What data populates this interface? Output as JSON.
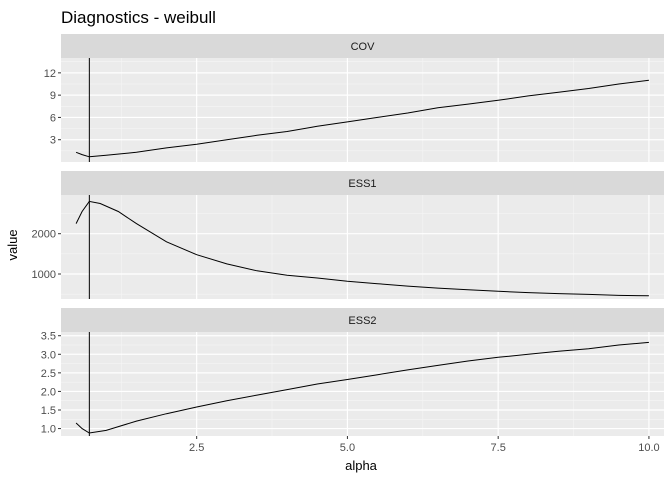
{
  "title": "Diagnostics - weibull",
  "xlabel": "alpha",
  "ylabel": "value",
  "chart_data": [
    {
      "type": "line",
      "panel": "COV",
      "xlim": [
        0.25,
        10.25
      ],
      "ylim": [
        0,
        14
      ],
      "x_ticks": [
        2.5,
        5.0,
        7.5,
        10.0
      ],
      "x_tick_labels": [
        "2.5",
        "5.0",
        "7.5",
        "10.0"
      ],
      "y_ticks": [
        3,
        6,
        9,
        12
      ],
      "y_tick_labels": [
        "3",
        "6",
        "9",
        "12"
      ],
      "vline_x": 0.72,
      "grid": true,
      "series": [
        {
          "x": [
            0.5,
            0.6,
            0.72,
            1.0,
            1.5,
            2.0,
            2.5,
            3.0,
            3.5,
            4.0,
            4.5,
            5.0,
            5.5,
            6.0,
            6.5,
            7.0,
            7.5,
            8.0,
            8.5,
            9.0,
            9.5,
            10.0
          ],
          "y": [
            1.3,
            1.0,
            0.7,
            0.9,
            1.3,
            1.9,
            2.4,
            3.0,
            3.6,
            4.1,
            4.8,
            5.4,
            6.0,
            6.6,
            7.3,
            7.8,
            8.3,
            8.9,
            9.4,
            9.9,
            10.5,
            11.0
          ]
        }
      ]
    },
    {
      "type": "line",
      "panel": "ESS1",
      "xlim": [
        0.25,
        10.25
      ],
      "ylim": [
        380,
        2960
      ],
      "x_ticks": [
        2.5,
        5.0,
        7.5,
        10.0
      ],
      "x_tick_labels": [
        "2.5",
        "5.0",
        "7.5",
        "10.0"
      ],
      "y_ticks": [
        1000,
        2000
      ],
      "y_tick_labels": [
        "1000",
        "2000"
      ],
      "vline_x": 0.72,
      "grid": true,
      "series": [
        {
          "x": [
            0.5,
            0.6,
            0.72,
            0.9,
            1.2,
            1.5,
            2.0,
            2.5,
            3.0,
            3.5,
            4.0,
            4.5,
            5.0,
            5.5,
            6.0,
            6.5,
            7.0,
            7.5,
            8.0,
            8.5,
            9.0,
            9.5,
            10.0
          ],
          "y": [
            2250,
            2550,
            2800,
            2750,
            2550,
            2250,
            1800,
            1480,
            1250,
            1080,
            970,
            900,
            820,
            760,
            700,
            650,
            610,
            570,
            540,
            515,
            495,
            470,
            460
          ]
        }
      ]
    },
    {
      "type": "line",
      "panel": "ESS2",
      "xlim": [
        0.25,
        10.25
      ],
      "ylim": [
        0.8,
        3.6
      ],
      "x_ticks": [
        2.5,
        5.0,
        7.5,
        10.0
      ],
      "x_tick_labels": [
        "2.5",
        "5.0",
        "7.5",
        "10.0"
      ],
      "y_ticks": [
        1.0,
        1.5,
        2.0,
        2.5,
        3.0,
        3.5
      ],
      "y_tick_labels": [
        "1.0",
        "1.5",
        "2.0",
        "2.5",
        "3.0",
        "3.5"
      ],
      "vline_x": 0.72,
      "grid": true,
      "series": [
        {
          "x": [
            0.5,
            0.6,
            0.72,
            1.0,
            1.5,
            2.0,
            2.5,
            3.0,
            3.5,
            4.0,
            4.5,
            5.0,
            5.5,
            6.0,
            6.5,
            7.0,
            7.5,
            8.0,
            8.5,
            9.0,
            9.5,
            10.0
          ],
          "y": [
            1.15,
            1.0,
            0.88,
            0.95,
            1.2,
            1.4,
            1.58,
            1.75,
            1.9,
            2.05,
            2.2,
            2.32,
            2.45,
            2.58,
            2.7,
            2.82,
            2.92,
            3.0,
            3.08,
            3.15,
            3.25,
            3.32
          ]
        }
      ]
    }
  ]
}
